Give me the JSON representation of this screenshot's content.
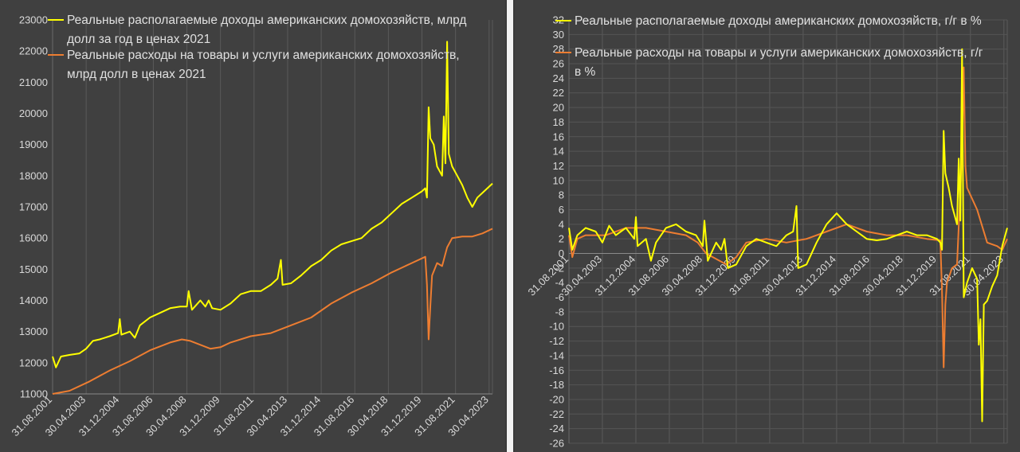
{
  "chart_data": [
    {
      "type": "line",
      "title": "",
      "xlabel": "",
      "ylabel": "",
      "ylim": [
        11000,
        23000
      ],
      "ystep": 1000,
      "grid": "vertical",
      "legend_position": "top-left",
      "x_tick_labels": [
        "31.08.2001",
        "30.04.2003",
        "31.12.2004",
        "31.08.2006",
        "30.04.2008",
        "31.12.2009",
        "31.08.2011",
        "30.04.2013",
        "31.12.2014",
        "31.08.2016",
        "30.04.2018",
        "31.12.2019",
        "31.08.2021",
        "30.04.2023"
      ],
      "x_tick_dates": [
        "2001-08",
        "2003-04",
        "2004-12",
        "2006-08",
        "2008-04",
        "2009-12",
        "2011-08",
        "2013-04",
        "2014-12",
        "2016-08",
        "2018-04",
        "2019-12",
        "2021-08",
        "2023-04"
      ],
      "x_range": [
        "2001-08",
        "2023-06"
      ],
      "series": [
        {
          "name": "Реальные располагаемые доходы американских домохозяйств, млрд долл за год в ценах 2021",
          "name_lines": [
            "Реальные располагаемые доходы американских домохозяйств, млрд",
            "долл за год в ценах 2021"
          ],
          "color": "#ffff00",
          "points": [
            [
              "2001-08",
              12200
            ],
            [
              "2001-10",
              11850
            ],
            [
              "2002-01",
              12200
            ],
            [
              "2002-06",
              12250
            ],
            [
              "2002-12",
              12300
            ],
            [
              "2003-04",
              12450
            ],
            [
              "2003-08",
              12700
            ],
            [
              "2003-12",
              12750
            ],
            [
              "2004-06",
              12850
            ],
            [
              "2004-11",
              12950
            ],
            [
              "2004-12",
              13400
            ],
            [
              "2005-01",
              12900
            ],
            [
              "2005-06",
              13000
            ],
            [
              "2005-09",
              12800
            ],
            [
              "2005-12",
              13200
            ],
            [
              "2006-06",
              13450
            ],
            [
              "2006-12",
              13600
            ],
            [
              "2007-06",
              13750
            ],
            [
              "2007-12",
              13800
            ],
            [
              "2008-04",
              13800
            ],
            [
              "2008-05",
              14300
            ],
            [
              "2008-07",
              13700
            ],
            [
              "2008-12",
              14000
            ],
            [
              "2009-03",
              13800
            ],
            [
              "2009-05",
              14000
            ],
            [
              "2009-07",
              13750
            ],
            [
              "2009-12",
              13700
            ],
            [
              "2010-06",
              13900
            ],
            [
              "2010-12",
              14200
            ],
            [
              "2011-06",
              14300
            ],
            [
              "2011-12",
              14300
            ],
            [
              "2012-06",
              14500
            ],
            [
              "2012-10",
              14700
            ],
            [
              "2012-12",
              15300
            ],
            [
              "2013-01",
              14500
            ],
            [
              "2013-06",
              14550
            ],
            [
              "2013-12",
              14800
            ],
            [
              "2014-06",
              15100
            ],
            [
              "2014-12",
              15300
            ],
            [
              "2015-06",
              15600
            ],
            [
              "2015-12",
              15800
            ],
            [
              "2016-06",
              15900
            ],
            [
              "2016-12",
              16000
            ],
            [
              "2017-06",
              16300
            ],
            [
              "2017-12",
              16500
            ],
            [
              "2018-06",
              16800
            ],
            [
              "2018-12",
              17100
            ],
            [
              "2019-06",
              17300
            ],
            [
              "2019-12",
              17500
            ],
            [
              "2020-02",
              17600
            ],
            [
              "2020-03",
              17300
            ],
            [
              "2020-04",
              20200
            ],
            [
              "2020-05",
              19200
            ],
            [
              "2020-07",
              19000
            ],
            [
              "2020-09",
              18300
            ],
            [
              "2020-12",
              18000
            ],
            [
              "2021-01",
              19900
            ],
            [
              "2021-02",
              18400
            ],
            [
              "2021-03",
              22300
            ],
            [
              "2021-04",
              18700
            ],
            [
              "2021-06",
              18300
            ],
            [
              "2021-09",
              18000
            ],
            [
              "2021-12",
              17700
            ],
            [
              "2022-03",
              17300
            ],
            [
              "2022-06",
              17000
            ],
            [
              "2022-09",
              17300
            ],
            [
              "2022-12",
              17450
            ],
            [
              "2023-03",
              17600
            ],
            [
              "2023-06",
              17750
            ]
          ]
        },
        {
          "name": "Реальные расходы на товары и услуги американских домохозяйств, млрд долл в ценах 2021",
          "name_lines": [
            "Реальные расходы на товары и услуги американских домохозяйств,",
            "млрд долл в ценах 2021"
          ],
          "color": "#ed7d31",
          "points": [
            [
              "2001-08",
              11000
            ],
            [
              "2002-06",
              11100
            ],
            [
              "2003-06",
              11400
            ],
            [
              "2004-06",
              11750
            ],
            [
              "2005-06",
              12050
            ],
            [
              "2006-06",
              12400
            ],
            [
              "2007-06",
              12650
            ],
            [
              "2008-01",
              12750
            ],
            [
              "2008-06",
              12700
            ],
            [
              "2009-06",
              12450
            ],
            [
              "2009-12",
              12500
            ],
            [
              "2010-06",
              12650
            ],
            [
              "2011-06",
              12850
            ],
            [
              "2012-06",
              12950
            ],
            [
              "2013-06",
              13200
            ],
            [
              "2014-06",
              13450
            ],
            [
              "2015-06",
              13900
            ],
            [
              "2016-06",
              14250
            ],
            [
              "2017-06",
              14550
            ],
            [
              "2018-06",
              14900
            ],
            [
              "2019-06",
              15200
            ],
            [
              "2020-02",
              15400
            ],
            [
              "2020-03",
              14500
            ],
            [
              "2020-04",
              12750
            ],
            [
              "2020-05",
              13800
            ],
            [
              "2020-06",
              14800
            ],
            [
              "2020-09",
              15200
            ],
            [
              "2020-12",
              15100
            ],
            [
              "2021-03",
              15700
            ],
            [
              "2021-06",
              16000
            ],
            [
              "2021-12",
              16050
            ],
            [
              "2022-06",
              16050
            ],
            [
              "2022-12",
              16150
            ],
            [
              "2023-06",
              16300
            ]
          ]
        }
      ]
    },
    {
      "type": "line",
      "title": "",
      "xlabel": "",
      "ylabel": "",
      "ylim": [
        -26,
        32
      ],
      "ystep": 2,
      "grid": "horizontal and vertical",
      "legend_position": "top",
      "x_tick_labels": [
        "31.08.2001",
        "30.04.2003",
        "31.12.2004",
        "31.08.2006",
        "30.04.2008",
        "31.12.2009",
        "31.08.2011",
        "30.04.2013",
        "31.12.2014",
        "31.08.2016",
        "30.04.2018",
        "31.12.2019",
        "31.08.2021",
        "30.04.2023"
      ],
      "x_tick_dates": [
        "2001-08",
        "2003-04",
        "2004-12",
        "2006-08",
        "2008-04",
        "2009-12",
        "2011-08",
        "2013-04",
        "2014-12",
        "2016-08",
        "2018-04",
        "2019-12",
        "2021-08",
        "2023-04"
      ],
      "x_range": [
        "2001-08",
        "2023-06"
      ],
      "series": [
        {
          "name": "Реальные располагаемые доходы американских домохозяйств, г/г в %",
          "name_lines": [
            "Реальные располагаемые доходы американских домохозяйств, г/г в %"
          ],
          "color": "#ffff00",
          "points": [
            [
              "2001-08",
              3.5
            ],
            [
              "2001-10",
              0.5
            ],
            [
              "2002-01",
              2.5
            ],
            [
              "2002-06",
              3.5
            ],
            [
              "2002-12",
              3.0
            ],
            [
              "2003-04",
              1.5
            ],
            [
              "2003-08",
              3.8
            ],
            [
              "2003-12",
              2.5
            ],
            [
              "2004-06",
              3.5
            ],
            [
              "2004-11",
              2.0
            ],
            [
              "2004-12",
              5.0
            ],
            [
              "2005-01",
              1.0
            ],
            [
              "2005-06",
              2.0
            ],
            [
              "2005-09",
              -1.0
            ],
            [
              "2005-12",
              1.5
            ],
            [
              "2006-06",
              3.5
            ],
            [
              "2006-12",
              4.0
            ],
            [
              "2007-06",
              3.0
            ],
            [
              "2007-12",
              2.5
            ],
            [
              "2008-04",
              1.0
            ],
            [
              "2008-05",
              4.5
            ],
            [
              "2008-07",
              -1.0
            ],
            [
              "2008-12",
              1.5
            ],
            [
              "2009-03",
              0.5
            ],
            [
              "2009-05",
              2.0
            ],
            [
              "2009-07",
              -2.0
            ],
            [
              "2009-12",
              -1.5
            ],
            [
              "2010-06",
              1.0
            ],
            [
              "2010-12",
              2.0
            ],
            [
              "2011-06",
              1.5
            ],
            [
              "2011-12",
              1.0
            ],
            [
              "2012-06",
              2.5
            ],
            [
              "2012-10",
              3.0
            ],
            [
              "2012-12",
              6.5
            ],
            [
              "2013-01",
              -2.0
            ],
            [
              "2013-06",
              -1.5
            ],
            [
              "2013-12",
              1.5
            ],
            [
              "2014-06",
              4.0
            ],
            [
              "2014-12",
              5.5
            ],
            [
              "2015-06",
              4.0
            ],
            [
              "2015-12",
              3.0
            ],
            [
              "2016-06",
              2.0
            ],
            [
              "2016-12",
              1.8
            ],
            [
              "2017-06",
              2.0
            ],
            [
              "2017-12",
              2.5
            ],
            [
              "2018-06",
              3.0
            ],
            [
              "2018-12",
              2.5
            ],
            [
              "2019-06",
              2.5
            ],
            [
              "2019-12",
              2.0
            ],
            [
              "2020-02",
              1.5
            ],
            [
              "2020-03",
              0.5
            ],
            [
              "2020-04",
              16.8
            ],
            [
              "2020-05",
              11.0
            ],
            [
              "2020-07",
              9.0
            ],
            [
              "2020-09",
              6.5
            ],
            [
              "2020-12",
              4.0
            ],
            [
              "2021-01",
              13.0
            ],
            [
              "2021-02",
              4.5
            ],
            [
              "2021-03",
              28.0
            ],
            [
              "2021-04",
              -6.0
            ],
            [
              "2021-06",
              -4.0
            ],
            [
              "2021-09",
              -2.0
            ],
            [
              "2021-12",
              -3.5
            ],
            [
              "2022-01",
              -12.5
            ],
            [
              "2022-02",
              -9.0
            ],
            [
              "2022-03",
              -23.0
            ],
            [
              "2022-04",
              -7.0
            ],
            [
              "2022-06",
              -6.5
            ],
            [
              "2022-09",
              -4.5
            ],
            [
              "2022-12",
              -3.0
            ],
            [
              "2023-03",
              1.0
            ],
            [
              "2023-06",
              3.5
            ]
          ]
        },
        {
          "name": "Реальные расходы на товары и услуги американских домохозяйств, г/г в %",
          "name_lines": [
            "Реальные расходы на товары и услуги американских домохозяйств, г/г",
            "в %"
          ],
          "color": "#ed7d31",
          "points": [
            [
              "2001-08",
              2.5
            ],
            [
              "2001-10",
              -0.5
            ],
            [
              "2002-01",
              2.0
            ],
            [
              "2002-06",
              2.5
            ],
            [
              "2003-06",
              2.5
            ],
            [
              "2004-06",
              3.5
            ],
            [
              "2005-06",
              3.5
            ],
            [
              "2006-06",
              3.0
            ],
            [
              "2007-06",
              2.5
            ],
            [
              "2008-01",
              1.5
            ],
            [
              "2008-06",
              0.0
            ],
            [
              "2009-06",
              -1.5
            ],
            [
              "2009-12",
              -0.5
            ],
            [
              "2010-06",
              1.5
            ],
            [
              "2011-06",
              2.0
            ],
            [
              "2012-06",
              1.5
            ],
            [
              "2013-06",
              2.0
            ],
            [
              "2014-06",
              3.0
            ],
            [
              "2015-06",
              4.0
            ],
            [
              "2016-06",
              3.0
            ],
            [
              "2017-06",
              2.5
            ],
            [
              "2018-06",
              2.5
            ],
            [
              "2019-06",
              2.0
            ],
            [
              "2020-02",
              1.8
            ],
            [
              "2020-03",
              -5.0
            ],
            [
              "2020-04",
              -15.6
            ],
            [
              "2020-05",
              -7.0
            ],
            [
              "2020-06",
              -4.0
            ],
            [
              "2020-09",
              -2.0
            ],
            [
              "2020-12",
              -1.5
            ],
            [
              "2021-03",
              14.0
            ],
            [
              "2021-04",
              25.5
            ],
            [
              "2021-05",
              12.0
            ],
            [
              "2021-06",
              9.0
            ],
            [
              "2021-12",
              6.0
            ],
            [
              "2022-06",
              1.5
            ],
            [
              "2022-12",
              1.0
            ],
            [
              "2023-03",
              0.5
            ],
            [
              "2023-06",
              2.0
            ]
          ]
        }
      ]
    }
  ]
}
